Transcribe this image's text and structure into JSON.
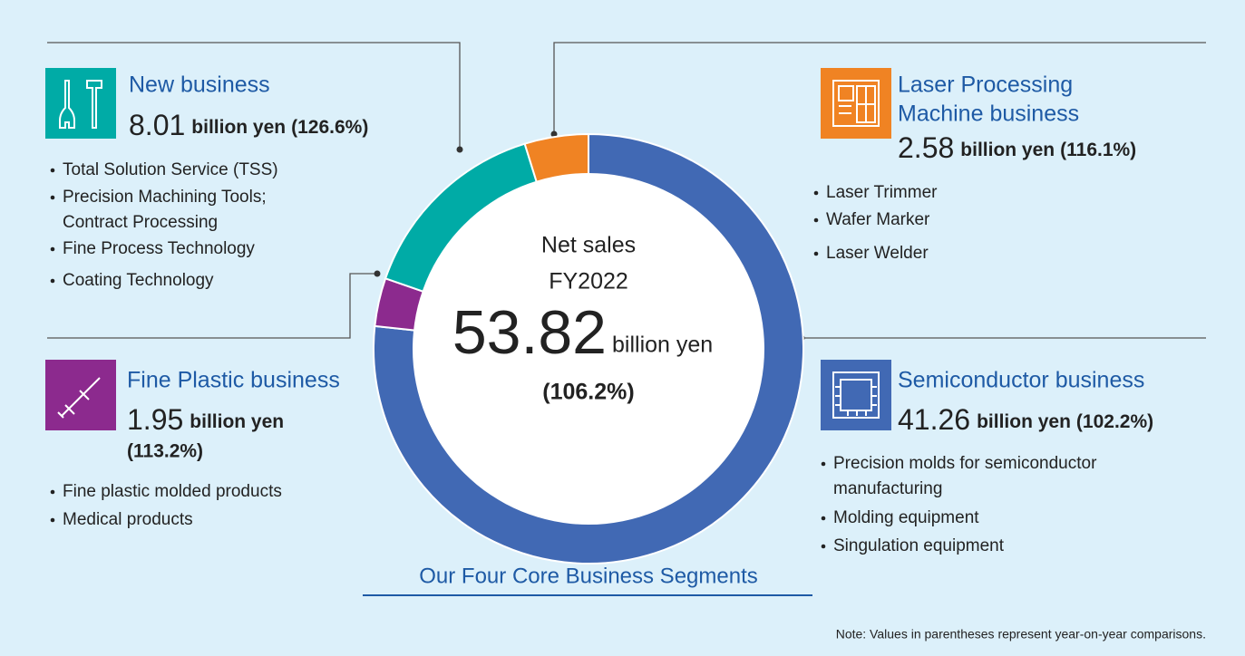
{
  "chart_data": {
    "type": "donut",
    "title": "Our Four Core Business Segments",
    "note": "Note: Values in parentheses represent year-on-year comparisons.",
    "center": {
      "label": [
        "Net sales",
        "FY2022"
      ],
      "total": 53.82,
      "unit": "billion yen",
      "yoy": "(106.2%)"
    },
    "unit": "billion yen",
    "categories": [
      [
        "Semiconductor business"
      ],
      [
        "Fine Plastic business"
      ],
      [
        "New business"
      ],
      [
        "Laser Processing",
        "Machine business"
      ]
    ],
    "values": [
      41.26,
      1.95,
      8.01,
      2.58
    ],
    "colors": [
      "#4169b4",
      "#8c2a8e",
      "#00aba6",
      "#f08323"
    ],
    "yoy": [
      "(102.2%)",
      "(113.2%)",
      "(126.6%)",
      "(116.1%)"
    ],
    "items": [
      [
        [
          "Precision molds for semiconductor",
          "manufacturing"
        ],
        [
          "Molding equipment"
        ],
        [
          "Singulation equipment"
        ]
      ],
      [
        [
          "Fine plastic molded products"
        ],
        [
          "Medical products"
        ]
      ],
      [
        [
          "Total Solution Service (TSS)"
        ],
        [
          "Precision Machining Tools;",
          "Contract Processing"
        ],
        [
          "Fine Process Technology"
        ],
        [
          "Coating Technology"
        ]
      ],
      [
        [
          "Laser Trimmer"
        ],
        [
          "Wafer Marker"
        ],
        [
          "Laser Welder"
        ]
      ]
    ]
  }
}
